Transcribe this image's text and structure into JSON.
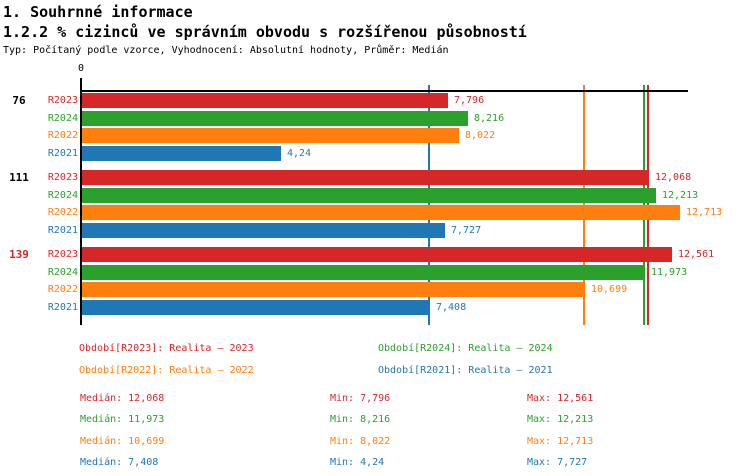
{
  "header": {
    "title": "1. Souhrnné informace",
    "subtitle": "1.2.2 % cizinců ve správním obvodu s rozšířenou působností",
    "meta": "Typ: Počítaný podle vzorce, Vyhodnocení: Absolutní hodnoty, Průměr: Medián"
  },
  "chart_data": {
    "type": "bar",
    "orientation": "horizontal",
    "title": "1.2.2 % cizinců ve správním obvodu s rozšířenou působností",
    "axis": {
      "zero_label": "0",
      "xlim": [
        0,
        12.91
      ],
      "grid": false
    },
    "groups": [
      {
        "label": "76",
        "label_color": "#000000"
      },
      {
        "label": "111",
        "label_color": "#000000"
      },
      {
        "label": "139",
        "label_color": "#d62728"
      }
    ],
    "series": [
      {
        "name": "R2023",
        "color": "#d62728",
        "values": [
          7.796,
          12.068,
          12.561
        ],
        "value_labels": [
          "7,796",
          "12,068",
          "12,561"
        ],
        "median": 12.068,
        "legend": "Období[R2023]: Realita – 2023",
        "stats": {
          "median": "Medián: 12,068",
          "min": "Min: 7,796",
          "max": "Max: 12,561"
        }
      },
      {
        "name": "R2024",
        "color": "#2ca02c",
        "values": [
          8.216,
          12.213,
          11.973
        ],
        "value_labels": [
          "8,216",
          "12,213",
          "11,973"
        ],
        "median": 11.973,
        "legend": "Období[R2024]: Realita – 2024",
        "stats": {
          "median": "Medián: 11,973",
          "min": "Min: 8,216",
          "max": "Max: 12,213"
        }
      },
      {
        "name": "R2022",
        "color": "#ff7f0e",
        "values": [
          8.022,
          12.713,
          10.699
        ],
        "value_labels": [
          "8,022",
          "12,713",
          "10,699"
        ],
        "median": 10.699,
        "legend": "Období[R2022]: Realita – 2022",
        "stats": {
          "median": "Medián: 10,699",
          "min": "Min: 8,022",
          "max": "Max: 12,713"
        }
      },
      {
        "name": "R2021",
        "color": "#1f77b4",
        "values": [
          4.24,
          7.727,
          7.408
        ],
        "value_labels": [
          "4,24",
          "7,727",
          "7,408"
        ],
        "median": 7.408,
        "legend": "Období[R2021]: Realita – 2021",
        "stats": {
          "median": "Medián: 7,408",
          "min": "Min: 4,24",
          "max": "Max: 7,727"
        }
      }
    ]
  }
}
